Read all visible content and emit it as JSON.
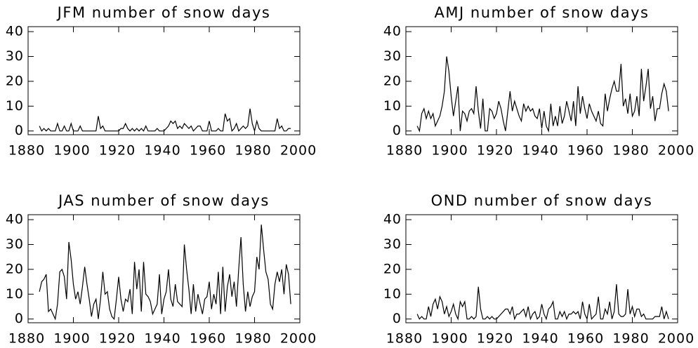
{
  "chart_data": [
    {
      "type": "line",
      "title": "JFM number of snow days",
      "color": "#000000",
      "x": [
        1885,
        1886,
        1887,
        1888,
        1889,
        1890,
        1891,
        1892,
        1893,
        1894,
        1895,
        1896,
        1897,
        1898,
        1899,
        1900,
        1901,
        1902,
        1903,
        1904,
        1905,
        1906,
        1907,
        1908,
        1909,
        1910,
        1911,
        1912,
        1913,
        1914,
        1915,
        1916,
        1917,
        1918,
        1919,
        1920,
        1921,
        1922,
        1923,
        1924,
        1925,
        1926,
        1927,
        1928,
        1929,
        1930,
        1931,
        1932,
        1933,
        1934,
        1935,
        1936,
        1937,
        1938,
        1939,
        1940,
        1941,
        1942,
        1943,
        1944,
        1945,
        1946,
        1947,
        1948,
        1949,
        1950,
        1951,
        1952,
        1953,
        1954,
        1955,
        1956,
        1957,
        1958,
        1959,
        1960,
        1961,
        1962,
        1963,
        1964,
        1965,
        1966,
        1967,
        1968,
        1969,
        1970,
        1971,
        1972,
        1973,
        1974,
        1975,
        1976,
        1977,
        1978,
        1979,
        1980,
        1981,
        1982,
        1983,
        1984,
        1985,
        1986,
        1987,
        1988,
        1989,
        1990,
        1991,
        1992,
        1993,
        1994,
        1995,
        1996
      ],
      "values": [
        2,
        0,
        1,
        0,
        1,
        0,
        0,
        0,
        3,
        0,
        0,
        2,
        0,
        0,
        3,
        0,
        0,
        0,
        2,
        0,
        0,
        0,
        0,
        0,
        0,
        0,
        6,
        1,
        2,
        0,
        0,
        0,
        0,
        0,
        0,
        0,
        1,
        1,
        3,
        1,
        0,
        1,
        0,
        1,
        0,
        1,
        0,
        2,
        0,
        0,
        0,
        0,
        1,
        0,
        0,
        0,
        1,
        2,
        4,
        3,
        4,
        1,
        2,
        1,
        3,
        2,
        1,
        2,
        0,
        1,
        2,
        2,
        0,
        0,
        0,
        4,
        0,
        0,
        0,
        1,
        0,
        0,
        7,
        4,
        5,
        0,
        1,
        3,
        0,
        1,
        2,
        1,
        2,
        9,
        3,
        0,
        4,
        1,
        0,
        0,
        0,
        0,
        0,
        0,
        0,
        5,
        1,
        2,
        0,
        0,
        1,
        1
      ],
      "xlim": [
        1880,
        2000
      ],
      "xticks": [
        1880,
        1900,
        1920,
        1940,
        1960,
        1980,
        2000
      ],
      "ylim": [
        -1.5,
        42
      ],
      "yticks": [
        0,
        10,
        20,
        30,
        40
      ]
    },
    {
      "type": "line",
      "title": "AMJ number of snow days",
      "color": "#000000",
      "x": [
        1885,
        1886,
        1887,
        1888,
        1889,
        1890,
        1891,
        1892,
        1893,
        1894,
        1895,
        1896,
        1897,
        1898,
        1899,
        1900,
        1901,
        1902,
        1903,
        1904,
        1905,
        1906,
        1907,
        1908,
        1909,
        1910,
        1911,
        1912,
        1913,
        1914,
        1915,
        1916,
        1917,
        1918,
        1919,
        1920,
        1921,
        1922,
        1923,
        1924,
        1925,
        1926,
        1927,
        1928,
        1929,
        1930,
        1931,
        1932,
        1933,
        1934,
        1935,
        1936,
        1937,
        1938,
        1939,
        1940,
        1941,
        1942,
        1943,
        1944,
        1945,
        1946,
        1947,
        1948,
        1949,
        1950,
        1951,
        1952,
        1953,
        1954,
        1955,
        1956,
        1957,
        1958,
        1959,
        1960,
        1961,
        1962,
        1963,
        1964,
        1965,
        1966,
        1967,
        1968,
        1969,
        1970,
        1971,
        1972,
        1973,
        1974,
        1975,
        1976,
        1977,
        1978,
        1979,
        1980,
        1981,
        1982,
        1983,
        1984,
        1985,
        1986,
        1987,
        1988,
        1989,
        1990,
        1991,
        1992,
        1993,
        1994,
        1995,
        1996
      ],
      "values": [
        2,
        0,
        7,
        9,
        5,
        8,
        5,
        7,
        2,
        4,
        6,
        10,
        16,
        30,
        24,
        14,
        6,
        12,
        18,
        0,
        8,
        7,
        4,
        8,
        9,
        7,
        18,
        8,
        1,
        13,
        0,
        0,
        9,
        8,
        5,
        7,
        12,
        9,
        4,
        0,
        8,
        16,
        8,
        12,
        9,
        6,
        4,
        11,
        8,
        10,
        8,
        9,
        6,
        5,
        9,
        1,
        8,
        2,
        0,
        11,
        2,
        6,
        2,
        10,
        3,
        6,
        12,
        8,
        4,
        12,
        2,
        18,
        7,
        14,
        9,
        5,
        11,
        8,
        6,
        4,
        8,
        3,
        2,
        15,
        8,
        13,
        17,
        20,
        16,
        16,
        27,
        10,
        13,
        7,
        15,
        6,
        8,
        14,
        6,
        25,
        12,
        18,
        25,
        9,
        14,
        4,
        9,
        9,
        15,
        19,
        16,
        8
      ],
      "xlim": [
        1880,
        2000
      ],
      "xticks": [
        1880,
        1900,
        1920,
        1940,
        1960,
        1980,
        2000
      ],
      "ylim": [
        -1.5,
        42
      ],
      "yticks": [
        0,
        10,
        20,
        30,
        40
      ]
    },
    {
      "type": "line",
      "title": "JAS number of snow days",
      "color": "#000000",
      "x": [
        1885,
        1886,
        1887,
        1888,
        1889,
        1890,
        1891,
        1892,
        1893,
        1894,
        1895,
        1896,
        1897,
        1898,
        1899,
        1900,
        1901,
        1902,
        1903,
        1904,
        1905,
        1906,
        1907,
        1908,
        1909,
        1910,
        1911,
        1912,
        1913,
        1914,
        1915,
        1916,
        1917,
        1918,
        1919,
        1920,
        1921,
        1922,
        1923,
        1924,
        1925,
        1926,
        1927,
        1928,
        1929,
        1930,
        1931,
        1932,
        1933,
        1934,
        1935,
        1936,
        1937,
        1938,
        1939,
        1940,
        1941,
        1942,
        1943,
        1944,
        1945,
        1946,
        1947,
        1948,
        1949,
        1950,
        1951,
        1952,
        1953,
        1954,
        1955,
        1956,
        1957,
        1958,
        1959,
        1960,
        1961,
        1962,
        1963,
        1964,
        1965,
        1966,
        1967,
        1968,
        1969,
        1970,
        1971,
        1972,
        1973,
        1974,
        1975,
        1976,
        1977,
        1978,
        1979,
        1980,
        1981,
        1982,
        1983,
        1984,
        1985,
        1986,
        1987,
        1988,
        1989,
        1990,
        1991,
        1992,
        1993,
        1994,
        1995,
        1996
      ],
      "values": [
        11,
        15,
        16,
        18,
        3,
        4,
        2,
        0,
        6,
        19,
        20,
        17,
        8,
        31,
        24,
        14,
        8,
        11,
        6,
        13,
        21,
        14,
        8,
        1,
        6,
        8,
        0,
        8,
        19,
        10,
        11,
        4,
        1,
        0,
        8,
        17,
        8,
        3,
        8,
        7,
        12,
        2,
        23,
        12,
        20,
        3,
        23,
        10,
        9,
        7,
        2,
        4,
        6,
        18,
        2,
        8,
        11,
        20,
        8,
        5,
        14,
        7,
        6,
        5,
        30,
        20,
        12,
        2,
        14,
        3,
        10,
        6,
        2,
        8,
        9,
        15,
        4,
        10,
        6,
        19,
        2,
        21,
        3,
        13,
        18,
        9,
        15,
        5,
        20,
        33,
        14,
        3,
        11,
        5,
        9,
        11,
        25,
        20,
        38,
        28,
        19,
        16,
        6,
        4,
        14,
        19,
        15,
        20,
        10,
        22,
        18,
        6
      ],
      "xlim": [
        1880,
        2000
      ],
      "xticks": [
        1880,
        1900,
        1920,
        1940,
        1960,
        1980,
        2000
      ],
      "ylim": [
        -1.5,
        42
      ],
      "yticks": [
        0,
        10,
        20,
        30,
        40
      ]
    },
    {
      "type": "line",
      "title": "OND number of snow days",
      "color": "#000000",
      "x": [
        1885,
        1886,
        1887,
        1888,
        1889,
        1890,
        1891,
        1892,
        1893,
        1894,
        1895,
        1896,
        1897,
        1898,
        1899,
        1900,
        1901,
        1902,
        1903,
        1904,
        1905,
        1906,
        1907,
        1908,
        1909,
        1910,
        1911,
        1912,
        1913,
        1914,
        1915,
        1916,
        1917,
        1918,
        1919,
        1920,
        1921,
        1922,
        1923,
        1924,
        1925,
        1926,
        1927,
        1928,
        1929,
        1930,
        1931,
        1932,
        1933,
        1934,
        1935,
        1936,
        1937,
        1938,
        1939,
        1940,
        1941,
        1942,
        1943,
        1944,
        1945,
        1946,
        1947,
        1948,
        1949,
        1950,
        1951,
        1952,
        1953,
        1954,
        1955,
        1956,
        1957,
        1958,
        1959,
        1960,
        1961,
        1962,
        1963,
        1964,
        1965,
        1966,
        1967,
        1968,
        1969,
        1970,
        1971,
        1972,
        1973,
        1974,
        1975,
        1976,
        1977,
        1978,
        1979,
        1980,
        1981,
        1982,
        1983,
        1984,
        1985,
        1986,
        1987,
        1988,
        1989,
        1990,
        1991,
        1992,
        1993,
        1994,
        1995,
        1996
      ],
      "values": [
        2,
        0,
        1,
        0,
        0,
        5,
        1,
        6,
        8,
        4,
        9,
        7,
        2,
        5,
        1,
        3,
        6,
        2,
        0,
        7,
        5,
        7,
        0,
        0,
        1,
        0,
        1,
        13,
        4,
        0,
        0,
        1,
        0,
        1,
        0,
        0,
        1,
        2,
        3,
        4,
        4,
        2,
        5,
        0,
        2,
        2,
        3,
        4,
        1,
        5,
        0,
        2,
        3,
        0,
        1,
        6,
        2,
        0,
        4,
        5,
        7,
        0,
        0,
        3,
        1,
        3,
        0,
        2,
        2,
        3,
        2,
        3,
        0,
        7,
        2,
        0,
        6,
        0,
        1,
        2,
        9,
        0,
        0,
        4,
        2,
        7,
        0,
        3,
        14,
        2,
        1,
        1,
        2,
        12,
        2,
        5,
        1,
        4,
        4,
        1,
        2,
        0,
        0,
        0,
        0,
        1,
        1,
        1,
        5,
        0,
        3,
        0
      ],
      "xlim": [
        1880,
        2000
      ],
      "xticks": [
        1880,
        1900,
        1920,
        1940,
        1960,
        1980,
        2000
      ],
      "ylim": [
        -1.5,
        42
      ],
      "yticks": [
        0,
        10,
        20,
        30,
        40
      ]
    }
  ]
}
